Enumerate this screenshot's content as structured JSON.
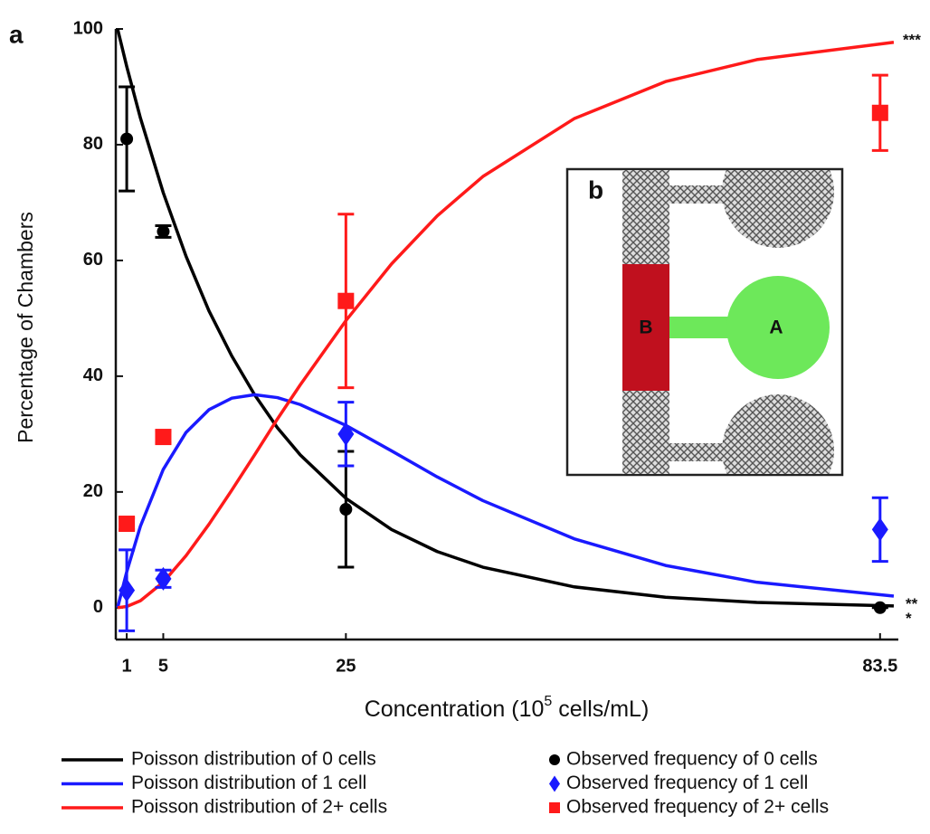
{
  "chart_data": {
    "type": "line",
    "panel_label": "a",
    "xlabel": [
      "Concentration (10",
      "5",
      " cells/mL)"
    ],
    "ylabel": "Percentage of Chambers",
    "xlim": [
      0,
      85.5
    ],
    "ylim": [
      -5.5,
      100
    ],
    "xticks": [
      1,
      5,
      25,
      83.5
    ],
    "yticks": [
      0,
      20,
      40,
      60,
      80,
      100
    ],
    "x": [
      0,
      1,
      2.5,
      5,
      7.5,
      10,
      12.5,
      15,
      17.5,
      20,
      25,
      30,
      35,
      40,
      50,
      60,
      70,
      85
    ],
    "series": [
      {
        "name": "Poisson distribution of 0 cells",
        "color": "#000000",
        "values": [
          100,
          93.5,
          84.6,
          71.7,
          60.7,
          51.3,
          43.5,
          36.8,
          31.1,
          26.4,
          18.9,
          13.5,
          9.7,
          7.0,
          3.6,
          1.8,
          0.9,
          0.3
        ]
      },
      {
        "name": "Poisson distribution of 1 cell",
        "color": "#1a1aff",
        "values": [
          0,
          6.2,
          14.1,
          23.9,
          30.3,
          34.2,
          36.2,
          36.8,
          36.3,
          35.1,
          31.5,
          27.1,
          22.6,
          18.5,
          11.9,
          7.3,
          4.4,
          2.0
        ]
      },
      {
        "name": "Poisson distribution of 2+ cells",
        "color": "#ff1a1a",
        "values": [
          0,
          0.2,
          1.2,
          4.4,
          9.0,
          14.4,
          20.3,
          26.4,
          32.6,
          38.5,
          49.6,
          59.4,
          67.7,
          74.5,
          84.5,
          90.9,
          94.7,
          97.7
        ]
      }
    ],
    "obs_x": [
      1,
      5,
      25,
      83.5
    ],
    "observed": [
      {
        "name": "Observed frequency of 0 cells",
        "color": "#000000",
        "marker": "circle",
        "values": [
          81,
          65,
          17,
          0
        ],
        "errors": [
          9,
          1,
          10,
          0
        ]
      },
      {
        "name": "Observed frequency of 1 cell",
        "color": "#1a1aff",
        "marker": "diamond",
        "values": [
          3,
          5,
          30,
          13.5
        ],
        "errors": [
          7,
          1.5,
          5.5,
          5.5
        ]
      },
      {
        "name": "Observed frequency of 2+ cells",
        "color": "#ff1a1a",
        "marker": "square",
        "values": [
          14.5,
          29.5,
          53,
          85.5
        ],
        "errors": [
          1,
          1,
          15,
          6.5
        ]
      }
    ],
    "annotations": [
      "***",
      "**",
      "*"
    ],
    "inset": {
      "label": "b",
      "regions": [
        "B",
        "A"
      ]
    }
  }
}
